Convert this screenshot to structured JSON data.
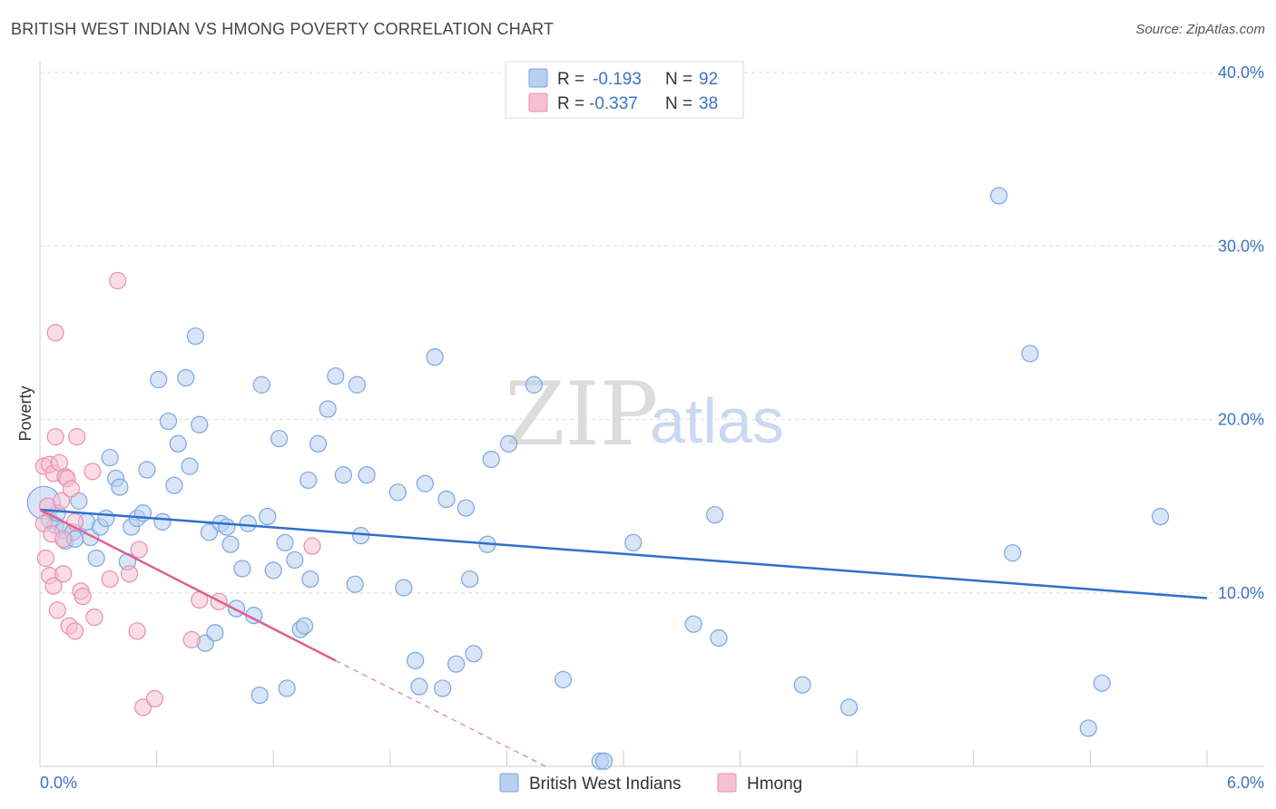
{
  "header": {
    "title": "BRITISH WEST INDIAN VS HMONG POVERTY CORRELATION CHART",
    "source": "Source: ZipAtlas.com"
  },
  "watermark": {
    "zip": "ZIP",
    "atlas": "atlas"
  },
  "colors": {
    "blue_fill": "#b7cff0",
    "blue_stroke": "#7aa6e0",
    "blue_line": "#2f6fcc",
    "pink_fill": "#f6c0d2",
    "pink_stroke": "#e88fae",
    "pink_line": "#e0608f",
    "grid": "#dddddd",
    "axis_label": "#3b73c4"
  },
  "legend_box": {
    "rows": [
      {
        "r_label": "R = ",
        "r_value": "-0.193",
        "n_label": "N = ",
        "n_value": "92",
        "color": "blue"
      },
      {
        "r_label": "R = ",
        "r_value": "-0.337",
        "n_label": "N = ",
        "n_value": "38",
        "color": "pink"
      }
    ]
  },
  "chart_data": {
    "type": "scatter",
    "title": "BRITISH WEST INDIAN VS HMONG POVERTY CORRELATION CHART",
    "ylabel": "Poverty",
    "xlim": [
      0,
      6
    ],
    "ylim": [
      0,
      40
    ],
    "x_tick_labels": [
      "0.0%",
      "6.0%"
    ],
    "y_ticks": [
      10,
      20,
      30,
      40
    ],
    "y_tick_labels": [
      "10.0%",
      "20.0%",
      "30.0%",
      "40.0%"
    ],
    "grid": true,
    "legend_position": "bottom",
    "series": [
      {
        "name": "British West Indians",
        "color": "blue",
        "trend": {
          "x": [
            0,
            6
          ],
          "y": [
            14.8,
            9.7
          ]
        },
        "points": [
          [
            0.02,
            15.2
          ],
          [
            0.05,
            14.2
          ],
          [
            0.08,
            13.9
          ],
          [
            0.09,
            14.6
          ],
          [
            0.12,
            13.6
          ],
          [
            0.13,
            13.0
          ],
          [
            0.17,
            13.5
          ],
          [
            0.18,
            13.1
          ],
          [
            0.2,
            15.3
          ],
          [
            0.24,
            14.1
          ],
          [
            0.26,
            13.2
          ],
          [
            0.29,
            12.0
          ],
          [
            0.31,
            13.8
          ],
          [
            0.34,
            14.3
          ],
          [
            0.36,
            17.8
          ],
          [
            0.39,
            16.6
          ],
          [
            0.41,
            16.1
          ],
          [
            0.45,
            11.8
          ],
          [
            0.47,
            13.8
          ],
          [
            0.5,
            14.3
          ],
          [
            0.53,
            14.6
          ],
          [
            0.55,
            17.1
          ],
          [
            0.61,
            22.3
          ],
          [
            0.63,
            14.1
          ],
          [
            0.66,
            19.9
          ],
          [
            0.69,
            16.2
          ],
          [
            0.71,
            18.6
          ],
          [
            0.75,
            22.4
          ],
          [
            0.77,
            17.3
          ],
          [
            0.8,
            24.8
          ],
          [
            0.82,
            19.7
          ],
          [
            0.85,
            7.1
          ],
          [
            0.87,
            13.5
          ],
          [
            0.9,
            7.7
          ],
          [
            0.93,
            14.0
          ],
          [
            0.96,
            13.8
          ],
          [
            0.98,
            12.8
          ],
          [
            1.01,
            9.1
          ],
          [
            1.04,
            11.4
          ],
          [
            1.07,
            14.0
          ],
          [
            1.1,
            8.7
          ],
          [
            1.13,
            4.1
          ],
          [
            1.14,
            22.0
          ],
          [
            1.17,
            14.4
          ],
          [
            1.2,
            11.3
          ],
          [
            1.23,
            18.9
          ],
          [
            1.26,
            12.9
          ],
          [
            1.27,
            4.5
          ],
          [
            1.31,
            11.9
          ],
          [
            1.34,
            7.9
          ],
          [
            1.36,
            8.1
          ],
          [
            1.38,
            16.5
          ],
          [
            1.39,
            10.8
          ],
          [
            1.43,
            18.6
          ],
          [
            1.48,
            20.6
          ],
          [
            1.52,
            22.5
          ],
          [
            1.56,
            16.8
          ],
          [
            1.62,
            10.5
          ],
          [
            1.63,
            22.0
          ],
          [
            1.65,
            13.3
          ],
          [
            1.68,
            16.8
          ],
          [
            1.84,
            15.8
          ],
          [
            1.87,
            10.3
          ],
          [
            1.93,
            6.1
          ],
          [
            1.95,
            4.6
          ],
          [
            1.98,
            16.3
          ],
          [
            2.03,
            23.6
          ],
          [
            2.07,
            4.5
          ],
          [
            2.09,
            15.4
          ],
          [
            2.14,
            5.9
          ],
          [
            2.19,
            14.9
          ],
          [
            2.21,
            10.8
          ],
          [
            2.23,
            6.5
          ],
          [
            2.3,
            12.8
          ],
          [
            2.32,
            17.7
          ],
          [
            2.41,
            18.6
          ],
          [
            2.54,
            22.0
          ],
          [
            2.69,
            5.0
          ],
          [
            2.88,
            0.3
          ],
          [
            3.05,
            12.9
          ],
          [
            3.36,
            8.2
          ],
          [
            3.47,
            14.5
          ],
          [
            3.49,
            7.4
          ],
          [
            3.92,
            4.7
          ],
          [
            4.16,
            3.4
          ],
          [
            4.93,
            32.9
          ],
          [
            5.0,
            12.3
          ],
          [
            5.09,
            23.8
          ],
          [
            5.39,
            2.2
          ],
          [
            5.46,
            4.8
          ],
          [
            5.76,
            14.4
          ],
          [
            2.9,
            0.3
          ]
        ]
      },
      {
        "name": "Hmong",
        "color": "pink",
        "trend": {
          "x": [
            0,
            1.52
          ],
          "y": [
            14.8,
            6.1
          ]
        },
        "trend_dashed": {
          "x": [
            1.52,
            2.6
          ],
          "y": [
            6.1,
            0.0
          ]
        },
        "points": [
          [
            0.02,
            14.0
          ],
          [
            0.02,
            17.3
          ],
          [
            0.03,
            12.0
          ],
          [
            0.04,
            15.0
          ],
          [
            0.05,
            17.4
          ],
          [
            0.05,
            11.0
          ],
          [
            0.06,
            13.4
          ],
          [
            0.07,
            16.9
          ],
          [
            0.07,
            10.4
          ],
          [
            0.08,
            25.0
          ],
          [
            0.08,
            19.0
          ],
          [
            0.09,
            9.0
          ],
          [
            0.1,
            17.5
          ],
          [
            0.11,
            15.3
          ],
          [
            0.12,
            13.1
          ],
          [
            0.12,
            11.1
          ],
          [
            0.13,
            16.7
          ],
          [
            0.14,
            16.6
          ],
          [
            0.15,
            8.1
          ],
          [
            0.16,
            16.0
          ],
          [
            0.18,
            14.1
          ],
          [
            0.18,
            7.8
          ],
          [
            0.19,
            19.0
          ],
          [
            0.21,
            10.1
          ],
          [
            0.22,
            9.8
          ],
          [
            0.27,
            17.0
          ],
          [
            0.28,
            8.6
          ],
          [
            0.36,
            10.8
          ],
          [
            0.4,
            28.0
          ],
          [
            0.46,
            11.1
          ],
          [
            0.5,
            7.8
          ],
          [
            0.51,
            12.5
          ],
          [
            0.53,
            3.4
          ],
          [
            0.59,
            3.9
          ],
          [
            0.78,
            7.3
          ],
          [
            0.82,
            9.6
          ],
          [
            0.92,
            9.5
          ],
          [
            1.4,
            12.7
          ]
        ]
      }
    ]
  },
  "bottom_legend": [
    {
      "label": "British West Indians",
      "color": "blue"
    },
    {
      "label": "Hmong",
      "color": "pink"
    }
  ]
}
